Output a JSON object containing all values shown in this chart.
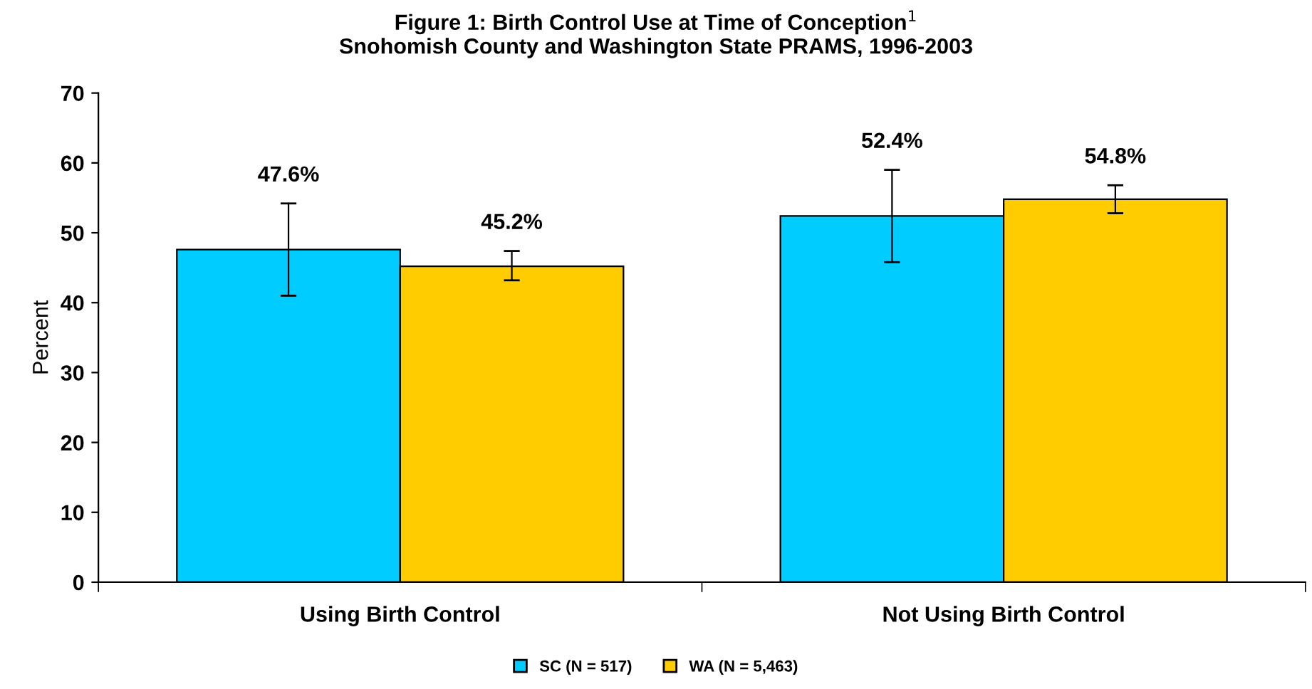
{
  "chart_data": {
    "type": "bar",
    "title": "Figure 1: Birth Control Use at Time of Conception$^{1}$\nSnohomish County and Washington State PRAMS, 1996-2003",
    "ylabel": "Percent",
    "categories": [
      "Using Birth Control",
      "Not Using Birth Control"
    ],
    "series": [
      {
        "name": "SC (N = 517)",
        "color": "#00ccff",
        "values": [
          47.6,
          52.4
        ],
        "errors": [
          [
            41.0,
            54.2
          ],
          [
            45.8,
            59.0
          ]
        ],
        "value_labels": [
          "47.6%",
          "52.4%"
        ]
      },
      {
        "name": "WA (N = 5,463)",
        "color": "#ffcc00",
        "values": [
          45.2,
          54.8
        ],
        "errors": [
          [
            43.2,
            47.4
          ],
          [
            52.8,
            56.8
          ]
        ],
        "value_labels": [
          "45.2%",
          "54.8%"
        ]
      }
    ],
    "ylim": [
      0,
      70
    ],
    "yticks": [
      0,
      10,
      20,
      30,
      40,
      50,
      60,
      70
    ],
    "grid": false,
    "legend": "bottom"
  }
}
